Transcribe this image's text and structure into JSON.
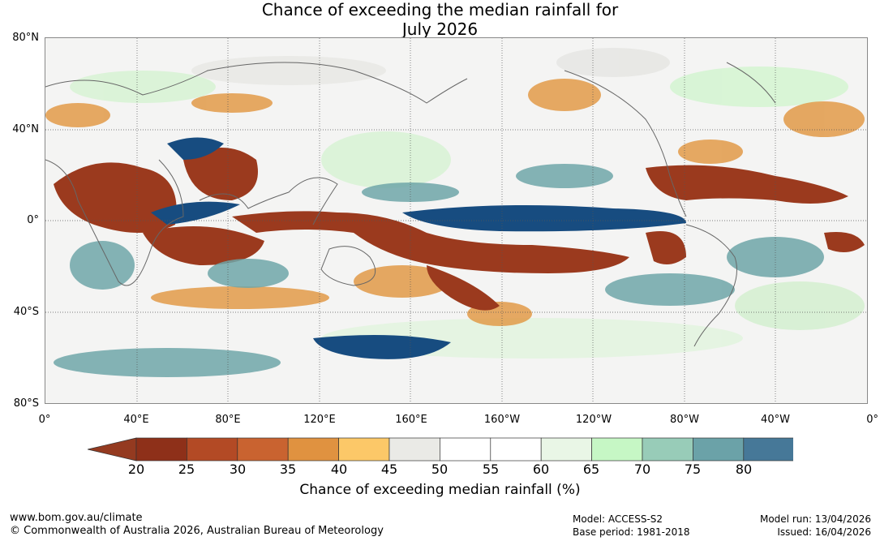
{
  "title": {
    "line1": "Chance of exceeding the median rainfall for",
    "line2": "July 2026"
  },
  "map": {
    "latitude_labels": [
      "80°N",
      "40°N",
      "0°",
      "40°S",
      "80°S"
    ],
    "longitude_labels": [
      "0°",
      "40°E",
      "80°E",
      "120°E",
      "160°E",
      "160°W",
      "120°W",
      "80°W",
      "40°W",
      "0°"
    ]
  },
  "colorbar": {
    "ticks": [
      "20",
      "25",
      "30",
      "35",
      "40",
      "45",
      "50",
      "55",
      "60",
      "65",
      "70",
      "75",
      "80"
    ],
    "colors": [
      "#8e3019",
      "#b34a25",
      "#c96330",
      "#e09240",
      "#fcc868",
      "#eaeae6",
      "#ffffff",
      "#ffffff",
      "#e9f6e6",
      "#c6f7c5",
      "#98ccb8",
      "#6ba2a8",
      "#467898"
    ],
    "under_color": "#943a20",
    "over_color": "#144a80",
    "label": "Chance of exceeding median rainfall (%)"
  },
  "footer": {
    "website": "www.bom.gov.au/climate",
    "copyright": "© Commonwealth of Australia 2026, Australian Bureau of Meteorology",
    "model": "Model: ACCESS-S2",
    "base_period": "Base period: 1981-2018",
    "model_run": "Model run: 13/04/2026",
    "issued": "Issued: 16/04/2026"
  }
}
